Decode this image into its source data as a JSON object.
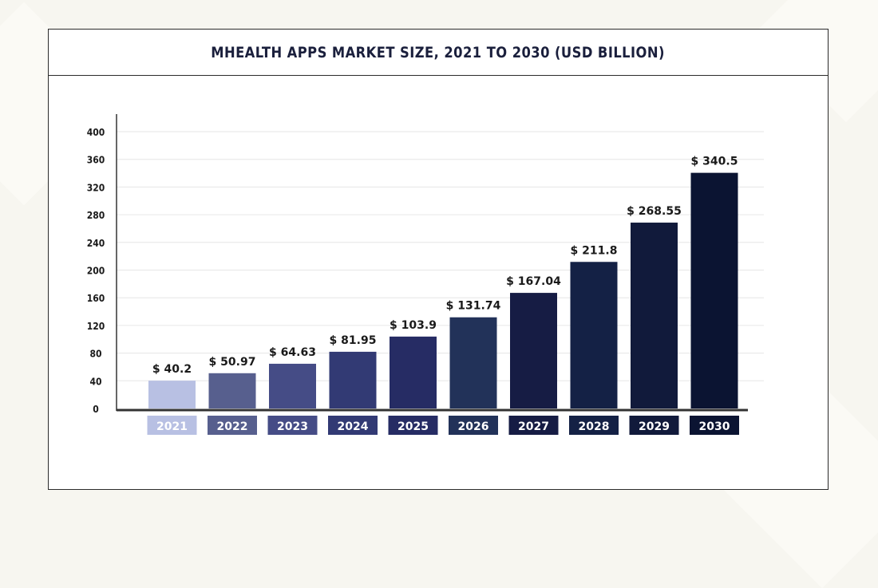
{
  "title": "MHEALTH APPS MARKET SIZE, 2021 TO 2030 (USD BILLION)",
  "chart_data": {
    "type": "bar",
    "title": "MHEALTH APPS MARKET SIZE, 2021 TO 2030 (USD BILLION)",
    "categories": [
      "2021",
      "2022",
      "2023",
      "2024",
      "2025",
      "2026",
      "2027",
      "2028",
      "2029",
      "2030"
    ],
    "values": [
      40.2,
      50.97,
      64.63,
      81.95,
      103.9,
      131.74,
      167.04,
      211.8,
      268.55,
      340.5
    ],
    "value_labels": [
      "$ 40.2",
      "$ 50.97",
      "$ 64.63",
      "$ 81.95",
      "$ 103.9",
      "$ 131.74",
      "$ 167.04",
      "$ 211.8",
      "$ 268.55",
      "$ 340.5"
    ],
    "y_ticks": [
      0,
      40,
      80,
      120,
      160,
      200,
      240,
      280,
      320,
      360,
      400
    ],
    "ylim": [
      0,
      400
    ],
    "grid": true,
    "legend": false,
    "colors": [
      "#b8c0e3",
      "#575f8e",
      "#454c86",
      "#323a74",
      "#262c64",
      "#223259",
      "#161c44",
      "#142145",
      "#111a3b",
      "#0b1432"
    ]
  }
}
